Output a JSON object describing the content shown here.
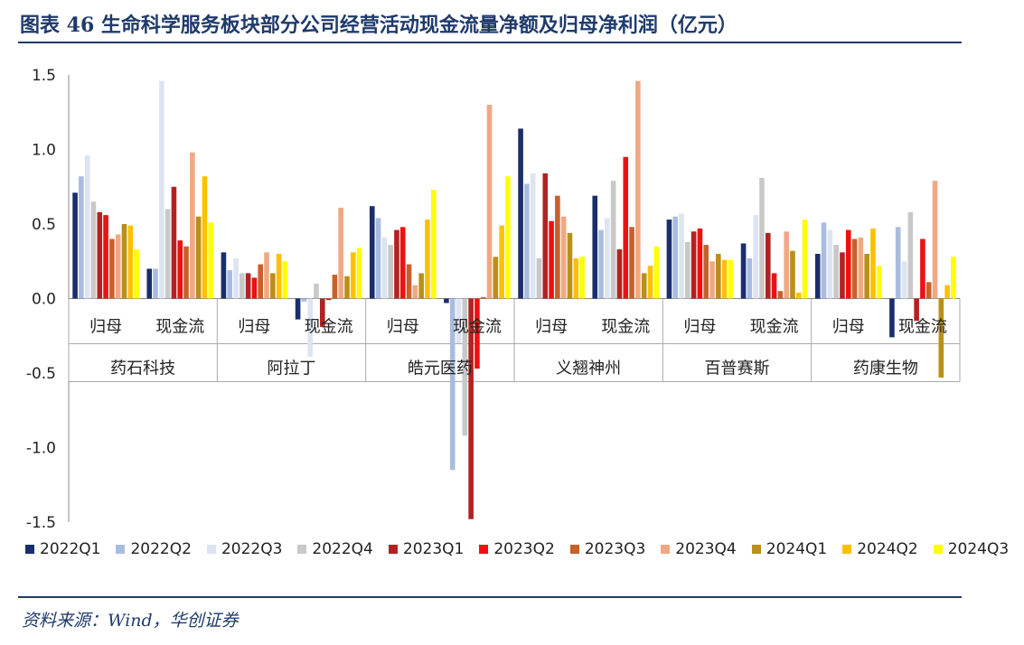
{
  "title": "图表 46   生命科学服务板块部分公司经营活动现金流量净额及归母净利润（亿元）",
  "source": "资料来源：Wind，华创证券",
  "chart_data": {
    "type": "bar",
    "ylim": [
      -1.5,
      1.5
    ],
    "yticks": [
      "1.5",
      "1.0",
      "0.5",
      "0.0",
      "-0.5",
      "-1.0",
      "-1.5"
    ],
    "ytick_values": [
      1.5,
      1.0,
      0.5,
      0.0,
      -0.5,
      -1.0,
      -1.5
    ],
    "companies": [
      "药石科技",
      "阿拉丁",
      "皓元医药",
      "义翘神州",
      "百普赛斯",
      "药康生物"
    ],
    "metrics": [
      "归母",
      "现金流"
    ],
    "series_names": [
      "2022Q1",
      "2022Q2",
      "2022Q3",
      "2022Q4",
      "2023Q1",
      "2023Q2",
      "2023Q3",
      "2023Q4",
      "2024Q1",
      "2024Q2",
      "2024Q3"
    ],
    "colors": [
      "#1a2e6b",
      "#a9bce0",
      "#dce4f2",
      "#c8c8c8",
      "#b22222",
      "#ee1111",
      "#c8602a",
      "#f0a882",
      "#b8901a",
      "#ffc000",
      "#ffff00"
    ],
    "groups": [
      {
        "company": "药石科技",
        "metric": "归母",
        "values": [
          0.71,
          0.82,
          0.96,
          0.65,
          0.58,
          0.56,
          0.4,
          0.43,
          0.5,
          0.49,
          0.33
        ]
      },
      {
        "company": "药石科技",
        "metric": "现金流",
        "values": [
          0.2,
          0.2,
          1.46,
          0.6,
          0.75,
          0.39,
          0.35,
          0.98,
          0.55,
          0.82,
          0.51
        ]
      },
      {
        "company": "阿拉丁",
        "metric": "归母",
        "values": [
          0.31,
          0.19,
          0.27,
          0.17,
          0.17,
          0.14,
          0.23,
          0.31,
          0.17,
          0.3,
          0.25
        ]
      },
      {
        "company": "阿拉丁",
        "metric": "现金流",
        "values": [
          -0.14,
          -0.02,
          -0.39,
          0.1,
          -0.19,
          -0.01,
          0.16,
          0.61,
          0.15,
          0.31,
          0.34
        ]
      },
      {
        "company": "皓元医药",
        "metric": "归母",
        "values": [
          0.62,
          0.54,
          0.41,
          0.36,
          0.46,
          0.48,
          0.23,
          0.09,
          0.17,
          0.53,
          0.73
        ]
      },
      {
        "company": "皓元医药",
        "metric": "现金流",
        "values": [
          -0.03,
          -1.15,
          -0.3,
          -0.92,
          -1.48,
          -0.47,
          0.01,
          1.3,
          0.28,
          0.49,
          0.82
        ]
      },
      {
        "company": "义翘神州",
        "metric": "归母",
        "values": [
          1.14,
          0.77,
          0.84,
          0.27,
          0.84,
          0.52,
          0.69,
          0.55,
          0.44,
          0.27,
          0.28
        ]
      },
      {
        "company": "义翘神州",
        "metric": "现金流",
        "values": [
          0.69,
          0.46,
          0.54,
          0.79,
          0.33,
          0.95,
          0.48,
          1.46,
          0.17,
          0.22,
          0.35
        ]
      },
      {
        "company": "百普赛斯",
        "metric": "归母",
        "values": [
          0.53,
          0.55,
          0.57,
          0.38,
          0.45,
          0.47,
          0.36,
          0.25,
          0.3,
          0.26,
          0.26
        ]
      },
      {
        "company": "百普赛斯",
        "metric": "现金流",
        "values": [
          0.37,
          0.27,
          0.56,
          0.81,
          0.44,
          0.17,
          0.05,
          0.45,
          0.32,
          0.04,
          0.53
        ]
      },
      {
        "company": "药康生物",
        "metric": "归母",
        "values": [
          0.3,
          0.51,
          0.46,
          0.36,
          0.31,
          0.46,
          0.4,
          0.41,
          0.3,
          0.47,
          0.22
        ]
      },
      {
        "company": "药康生物",
        "metric": "现金流",
        "values": [
          -0.26,
          0.48,
          0.25,
          0.58,
          -0.15,
          0.4,
          0.11,
          0.79,
          -0.53,
          0.09,
          0.28
        ]
      }
    ]
  }
}
